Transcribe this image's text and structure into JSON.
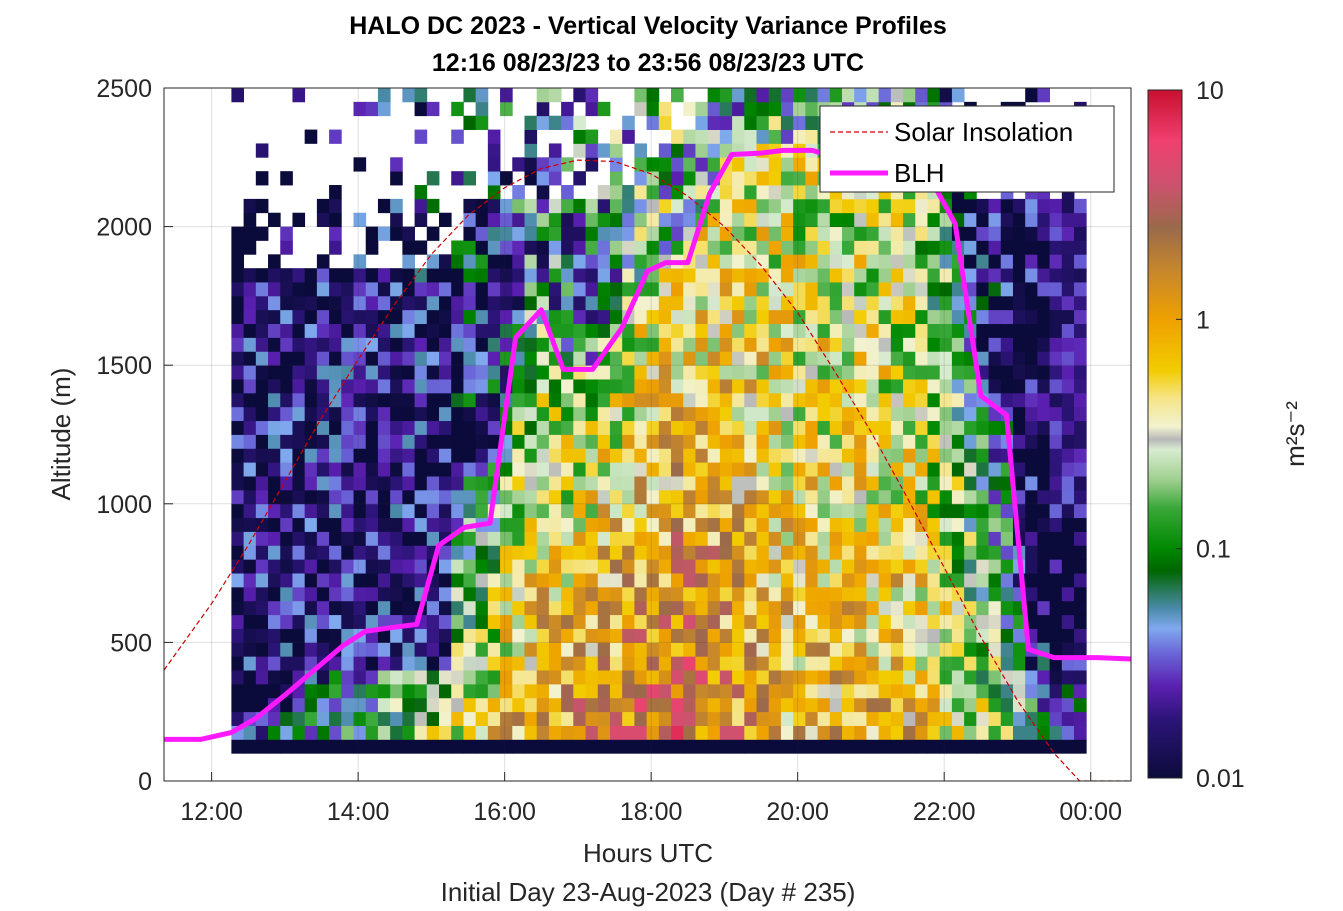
{
  "chart_data": {
    "type": "heatmap",
    "title": "HALO DC 2023 - Vertical Velocity Variance Profiles",
    "subtitle": "12:16 08/23/23 to 23:56 08/23/23  UTC",
    "xlabel": "Hours UTC",
    "footer": "Initial Day 23-Aug-2023 (Day # 235)",
    "ylabel": "Altitude (m)",
    "xlim": [
      11.35,
      24.55
    ],
    "ylim": [
      0,
      2500
    ],
    "x_ticks": [
      {
        "v": 12,
        "label": "12:00"
      },
      {
        "v": 14,
        "label": "14:00"
      },
      {
        "v": 16,
        "label": "16:00"
      },
      {
        "v": 18,
        "label": "18:00"
      },
      {
        "v": 20,
        "label": "20:00"
      },
      {
        "v": 22,
        "label": "22:00"
      },
      {
        "v": 24,
        "label": "00:00"
      }
    ],
    "y_ticks": [
      {
        "v": 0,
        "label": "0"
      },
      {
        "v": 500,
        "label": "500"
      },
      {
        "v": 1000,
        "label": "1000"
      },
      {
        "v": 1500,
        "label": "1500"
      },
      {
        "v": 2000,
        "label": "2000"
      },
      {
        "v": 2500,
        "label": "2500"
      }
    ],
    "grid": true,
    "legend_position": "top-right",
    "colorbar": {
      "label": "m²s⁻²",
      "scale": "log",
      "range": [
        0.01,
        10
      ],
      "ticks": [
        {
          "v": 0.01,
          "label": "0.01"
        },
        {
          "v": 0.1,
          "label": "0.1"
        },
        {
          "v": 1,
          "label": "1"
        },
        {
          "v": 10,
          "label": "10"
        }
      ],
      "stops": [
        {
          "v": 0.01,
          "color": "#0b0b3b"
        },
        {
          "v": 0.018,
          "color": "#2c1478"
        },
        {
          "v": 0.025,
          "color": "#5a1fb0"
        },
        {
          "v": 0.035,
          "color": "#6a66d8"
        },
        {
          "v": 0.045,
          "color": "#7fa9ee"
        },
        {
          "v": 0.055,
          "color": "#4a8aa8"
        },
        {
          "v": 0.065,
          "color": "#2a7a5e"
        },
        {
          "v": 0.08,
          "color": "#006600"
        },
        {
          "v": 0.1,
          "color": "#008800"
        },
        {
          "v": 0.15,
          "color": "#38a838"
        },
        {
          "v": 0.2,
          "color": "#9fcf8f"
        },
        {
          "v": 0.27,
          "color": "#d8ecd0"
        },
        {
          "v": 0.3,
          "color": "#b8b8b8"
        },
        {
          "v": 0.34,
          "color": "#f2f2d0"
        },
        {
          "v": 0.45,
          "color": "#f5e58a"
        },
        {
          "v": 0.6,
          "color": "#f2cc00"
        },
        {
          "v": 1.0,
          "color": "#eea000"
        },
        {
          "v": 1.6,
          "color": "#c8882a"
        },
        {
          "v": 2.5,
          "color": "#9a6a4a"
        },
        {
          "v": 4.0,
          "color": "#d05070"
        },
        {
          "v": 6.0,
          "color": "#f04070"
        },
        {
          "v": 10,
          "color": "#c8102e"
        }
      ]
    },
    "heatmap": {
      "time_start": 12.27,
      "time_step": 0.1667,
      "alt_start": 100,
      "alt_step": 50,
      "rows_from": 0,
      "note_values": "log10 variance; null = no data",
      "bands": [
        {
          "from_h": 12.27,
          "to_h": 12.77,
          "from_alt": 100,
          "to_alt": 1800,
          "value": 0.012
        },
        {
          "from_h": 12.77,
          "to_h": 13.77,
          "from_alt": 100,
          "to_alt": 2000,
          "value": 0.013
        },
        {
          "from_h": 13.77,
          "to_h": 15.27,
          "from_alt": 100,
          "to_alt": 1800,
          "value": 0.013
        }
      ],
      "bottom_row": {
        "alt": 100,
        "value": 0.01
      },
      "profile_hint": [
        {
          "h": 12.35,
          "low": 0.07,
          "mid": 0.012
        },
        {
          "h": 15.5,
          "low": 0.5,
          "mid": 0.08
        },
        {
          "h": 16.5,
          "low": 1.5,
          "mid": 0.15
        },
        {
          "h": 18.4,
          "low": 3.0,
          "mid": 0.35
        },
        {
          "h": 20.0,
          "low": 0.8,
          "mid": 0.3
        },
        {
          "h": 21.5,
          "low": 0.9,
          "mid": 0.2
        },
        {
          "h": 23.0,
          "low": 0.2,
          "mid": 0.03
        },
        {
          "h": 23.9,
          "low": 0.1,
          "mid": 0.012
        }
      ]
    },
    "series": [
      {
        "name": "Solar Insolation",
        "style": "dashed",
        "color": "#cc0000",
        "points": [
          [
            11.35,
            400
          ],
          [
            12,
            640
          ],
          [
            12.5,
            850
          ],
          [
            13,
            1080
          ],
          [
            13.5,
            1310
          ],
          [
            14,
            1520
          ],
          [
            14.5,
            1720
          ],
          [
            15,
            1900
          ],
          [
            15.5,
            2040
          ],
          [
            16,
            2140
          ],
          [
            16.5,
            2210
          ],
          [
            17,
            2240
          ],
          [
            17.5,
            2235
          ],
          [
            18,
            2190
          ],
          [
            18.5,
            2110
          ],
          [
            19,
            2000
          ],
          [
            19.5,
            1860
          ],
          [
            20,
            1690
          ],
          [
            20.5,
            1480
          ],
          [
            21,
            1260
          ],
          [
            21.5,
            1020
          ],
          [
            22,
            770
          ],
          [
            22.5,
            520
          ],
          [
            23,
            290
          ],
          [
            23.5,
            100
          ],
          [
            23.85,
            0
          ],
          [
            24.55,
            0
          ]
        ]
      },
      {
        "name": "BLH",
        "style": "solid",
        "color": "#ff19ff",
        "points": [
          [
            11.35,
            150
          ],
          [
            11.85,
            150
          ],
          [
            12.27,
            175
          ],
          [
            12.6,
            225
          ],
          [
            13.0,
            310
          ],
          [
            13.4,
            400
          ],
          [
            13.8,
            490
          ],
          [
            14.1,
            540
          ],
          [
            14.5,
            555
          ],
          [
            14.8,
            565
          ],
          [
            15.1,
            850
          ],
          [
            15.45,
            915
          ],
          [
            15.8,
            930
          ],
          [
            16.15,
            1600
          ],
          [
            16.5,
            1700
          ],
          [
            16.8,
            1485
          ],
          [
            17.2,
            1485
          ],
          [
            17.6,
            1635
          ],
          [
            17.95,
            1840
          ],
          [
            18.2,
            1870
          ],
          [
            18.5,
            1870
          ],
          [
            18.8,
            2120
          ],
          [
            19.1,
            2260
          ],
          [
            19.5,
            2265
          ],
          [
            19.8,
            2275
          ],
          [
            20.2,
            2275
          ],
          [
            20.5,
            2250
          ],
          [
            20.8,
            2270
          ],
          [
            21.2,
            2280
          ],
          [
            21.5,
            2250
          ],
          [
            21.8,
            2180
          ],
          [
            22.15,
            2010
          ],
          [
            22.5,
            1390
          ],
          [
            22.85,
            1320
          ],
          [
            23.15,
            475
          ],
          [
            23.5,
            445
          ],
          [
            24.1,
            445
          ],
          [
            24.55,
            440
          ]
        ]
      }
    ]
  }
}
